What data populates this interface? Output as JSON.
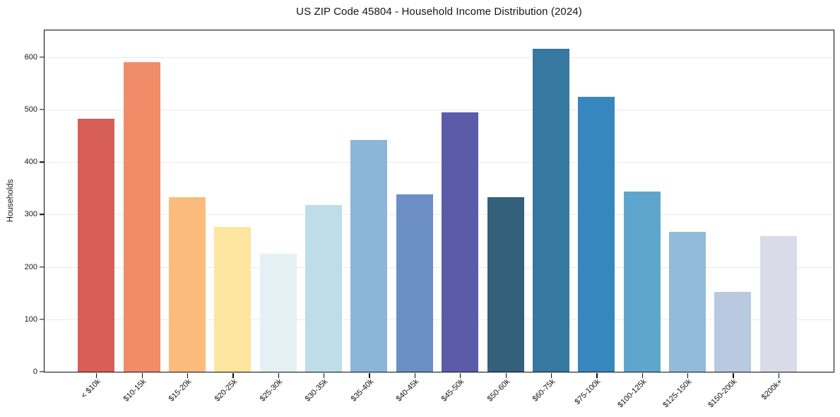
{
  "chart_data": {
    "type": "bar",
    "title": "US ZIP Code 45804 - Household Income Distribution (2024)",
    "xlabel": "",
    "ylabel": "Households",
    "categories": [
      "< $10k",
      "$10-15k",
      "$15-20k",
      "$20-25k",
      "$25-30k",
      "$30-35k",
      "$35-40k",
      "$40-45k",
      "$45-50k",
      "$50-60k",
      "$60-75k",
      "$75-100k",
      "$100-125k",
      "$125-150k",
      "$150-200k",
      "$200k+"
    ],
    "values": [
      482,
      591,
      333,
      276,
      225,
      318,
      442,
      338,
      495,
      333,
      616,
      524,
      344,
      267,
      152,
      259
    ],
    "bar_colors": [
      "#d75f55",
      "#f08c68",
      "#fbbb7d",
      "#fde5a0",
      "#e4f1f4",
      "#bedde8",
      "#8cb6d9",
      "#6b8fc5",
      "#5a5caa",
      "#35607b",
      "#36789f",
      "#3587bd",
      "#5ea6cc",
      "#92bad9",
      "#b9c9df",
      "#d9dbe8"
    ],
    "yticks": [
      0,
      100,
      200,
      300,
      400,
      500,
      600
    ],
    "ylim": [
      0,
      651
    ],
    "grid": "horizontal",
    "legend": "none",
    "axis_color": "#0a0a0a",
    "gridline_color": "#e9e9ef"
  }
}
